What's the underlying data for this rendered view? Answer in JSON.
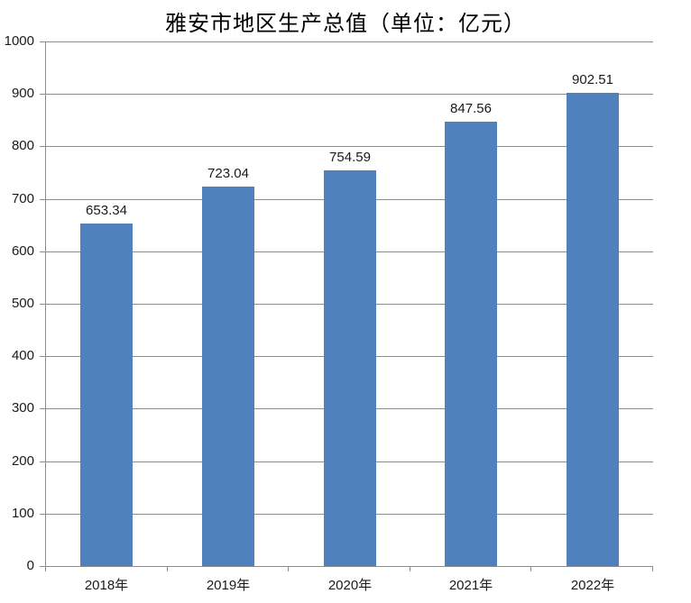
{
  "chart_data": {
    "type": "bar",
    "title": "雅安市地区生产总值（单位：亿元）",
    "categories": [
      "2018年",
      "2019年",
      "2020年",
      "2021年",
      "2022年"
    ],
    "values": [
      653.34,
      723.04,
      754.59,
      847.56,
      902.51
    ],
    "data_labels": [
      "653.34",
      "723.04",
      "754.59",
      "847.56",
      "902.51"
    ],
    "xlabel": "",
    "ylabel": "",
    "ylim": [
      0,
      1000
    ],
    "ytick_step": 100,
    "ytick_labels": [
      "0",
      "100",
      "200",
      "300",
      "400",
      "500",
      "600",
      "700",
      "800",
      "900",
      "1000"
    ],
    "grid": true,
    "legend": false,
    "colors": {
      "bar": "#4F81BD",
      "gridline": "#8C8C8C",
      "axis": "#8C8C8C",
      "text": "#1A1A1A",
      "title_text": "#000000",
      "background": "#FFFFFF"
    }
  }
}
